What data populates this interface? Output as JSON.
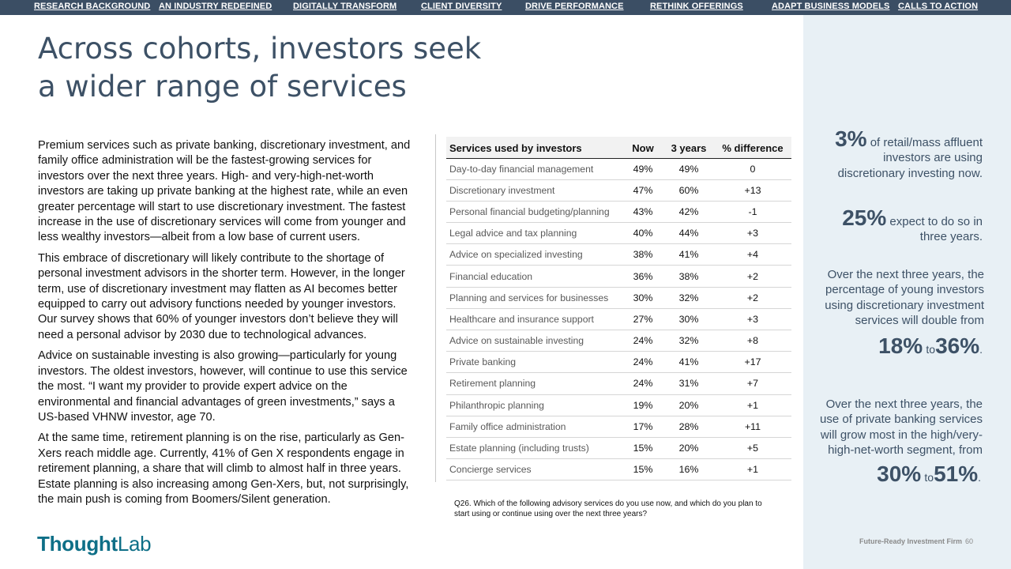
{
  "nav": {
    "items": [
      "RESEARCH BACKGROUND",
      "AN INDUSTRY REDEFINED",
      "DIGITALLY TRANSFORM",
      "CLIENT DIVERSITY",
      "DRIVE PERFORMANCE",
      "RETHINK OFFERINGS",
      "ADAPT BUSINESS MODELS",
      "CALLS TO ACTION"
    ]
  },
  "title": {
    "line1": "Across cohorts, investors seek",
    "line2": "a wider range of services"
  },
  "body": {
    "p1": "Premium services such as private banking, discretionary investment, and family office administration will be the fastest-growing services for investors over the next three years. High- and very-high-net-worth investors are taking up private banking at the highest rate, while an even greater percentage will start to use discretionary investment. The fastest increase in the use of discretionary services will come from younger and less wealthy investors—albeit from a low base of current users.",
    "p2": "This embrace of discretionary will likely contribute to the shortage of personal investment advisors in the shorter term. However, in the longer term, use of discretionary investment may flatten as AI becomes better equipped to carry out advisory functions needed by younger investors. Our survey shows that 60% of younger investors don’t believe they will need a personal advisor by 2030 due to technological advances.",
    "p3": "Advice on sustainable investing is also growing—particularly for young investors. The oldest investors, however, will continue to use this service the most. “I want my provider to provide expert advice on the environmental and financial advantages of green investments,” says a US-based VHNW investor, age 70.",
    "p4": "At the same time, retirement planning is on the rise, particularly as Gen-Xers reach middle age. Currently, 41% of Gen X respondents engage in retirement planning, a share that will climb to almost half in three years. Estate planning is also increasing among Gen-Xers, but, not surprisingly, the main push is coming from Boomers/Silent generation."
  },
  "table": {
    "headers": [
      "Services used by investors",
      "Now",
      "3 years",
      "% difference"
    ],
    "rows": [
      [
        "Day-to-day financial management",
        "49%",
        "49%",
        "0"
      ],
      [
        "Discretionary investment",
        "47%",
        "60%",
        "+13"
      ],
      [
        "Personal financial budgeting/planning",
        "43%",
        "42%",
        "-1"
      ],
      [
        "Legal advice and tax planning",
        "40%",
        "44%",
        "+3"
      ],
      [
        "Advice on specialized investing",
        "38%",
        "41%",
        "+4"
      ],
      [
        "Financial education",
        "36%",
        "38%",
        "+2"
      ],
      [
        "Planning and services for businesses",
        "30%",
        "32%",
        "+2"
      ],
      [
        "Healthcare and insurance support",
        "27%",
        "30%",
        "+3"
      ],
      [
        "Advice on sustainable investing",
        "24%",
        "32%",
        "+8"
      ],
      [
        "Private banking",
        "24%",
        "41%",
        "+17"
      ],
      [
        "Retirement planning",
        "24%",
        "31%",
        "+7"
      ],
      [
        "Philanthropic planning",
        "19%",
        "20%",
        "+1"
      ],
      [
        "Family office administration",
        "17%",
        "28%",
        "+11"
      ],
      [
        "Estate planning (including trusts)",
        "15%",
        "20%",
        "+5"
      ],
      [
        "Concierge services",
        "15%",
        "16%",
        "+1"
      ]
    ],
    "question": "Q26. Which of the following advisory services do you use now, and which do you plan to start using or continue using over the next three years?"
  },
  "sidebar": {
    "stat1": {
      "big": "3%",
      "text_a": " of retail/mass affluent",
      "text_b": "investors are using",
      "text_c": "discretionary investing now."
    },
    "stat2": {
      "big": "25%",
      "text_a": " expect to do so in",
      "text_b": "three years."
    },
    "stat3": {
      "line1": "Over the next three years, the",
      "line2": "percentage of young investors",
      "line3": "using discretionary investment",
      "line4": "services will double from",
      "from": "18%",
      "to_word": "to",
      "to": "36%",
      "end": "."
    },
    "stat4": {
      "line1": "Over the next three years, the",
      "line2": "use of private banking services",
      "line3": "will grow most in the high/very-",
      "line4": "high-net-worth segment, from",
      "from": "30%",
      "to_word": "to",
      "to": "51%",
      "end": "."
    }
  },
  "logo": {
    "bold": "Thought",
    "regular": "Lab"
  },
  "footer": {
    "name": "Future-Ready Investment Firm",
    "page": "60"
  }
}
